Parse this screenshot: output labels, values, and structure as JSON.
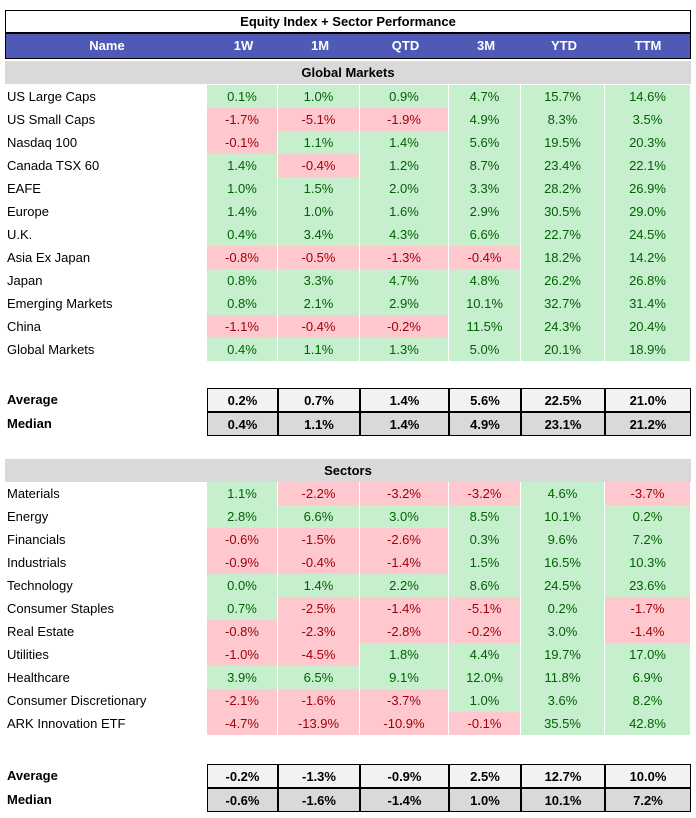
{
  "title": "Equity Index + Sector Performance",
  "columns": [
    "Name",
    "1W",
    "1M",
    "QTD",
    "3M",
    "YTD",
    "TTM"
  ],
  "global": {
    "heading": "Global Markets",
    "rows": [
      {
        "name": "US Large Caps",
        "values": [
          "0.1%",
          "1.0%",
          "0.9%",
          "4.7%",
          "15.7%",
          "14.6%"
        ]
      },
      {
        "name": "US Small Caps",
        "values": [
          "-1.7%",
          "-5.1%",
          "-1.9%",
          "4.9%",
          "8.3%",
          "3.5%"
        ]
      },
      {
        "name": "Nasdaq 100",
        "values": [
          "-0.1%",
          "1.1%",
          "1.4%",
          "5.6%",
          "19.5%",
          "20.3%"
        ]
      },
      {
        "name": "Canada TSX 60",
        "values": [
          "1.4%",
          "-0.4%",
          "1.2%",
          "8.7%",
          "23.4%",
          "22.1%"
        ]
      },
      {
        "name": "EAFE",
        "values": [
          "1.0%",
          "1.5%",
          "2.0%",
          "3.3%",
          "28.2%",
          "26.9%"
        ]
      },
      {
        "name": "Europe",
        "values": [
          "1.4%",
          "1.0%",
          "1.6%",
          "2.9%",
          "30.5%",
          "29.0%"
        ]
      },
      {
        "name": "U.K.",
        "values": [
          "0.4%",
          "3.4%",
          "4.3%",
          "6.6%",
          "22.7%",
          "24.5%"
        ]
      },
      {
        "name": "Asia Ex Japan",
        "values": [
          "-0.8%",
          "-0.5%",
          "-1.3%",
          "-0.4%",
          "18.2%",
          "14.2%"
        ]
      },
      {
        "name": "Japan",
        "values": [
          "0.8%",
          "3.3%",
          "4.7%",
          "4.8%",
          "26.2%",
          "26.8%"
        ]
      },
      {
        "name": "Emerging Markets",
        "values": [
          "0.8%",
          "2.1%",
          "2.9%",
          "10.1%",
          "32.7%",
          "31.4%"
        ]
      },
      {
        "name": "China",
        "values": [
          "-1.1%",
          "-0.4%",
          "-0.2%",
          "11.5%",
          "24.3%",
          "20.4%"
        ]
      },
      {
        "name": "Global Markets",
        "values": [
          "0.4%",
          "1.1%",
          "1.3%",
          "5.0%",
          "20.1%",
          "18.9%"
        ]
      }
    ],
    "summary": [
      {
        "name": "Average",
        "values": [
          "0.2%",
          "0.7%",
          "1.4%",
          "5.6%",
          "22.5%",
          "21.0%"
        ]
      },
      {
        "name": "Median",
        "values": [
          "0.4%",
          "1.1%",
          "1.4%",
          "4.9%",
          "23.1%",
          "21.2%"
        ]
      }
    ]
  },
  "sectors": {
    "heading": "Sectors",
    "rows": [
      {
        "name": "Materials",
        "values": [
          "1.1%",
          "-2.2%",
          "-3.2%",
          "-3.2%",
          "4.6%",
          "-3.7%"
        ]
      },
      {
        "name": "Energy",
        "values": [
          "2.8%",
          "6.6%",
          "3.0%",
          "8.5%",
          "10.1%",
          "0.2%"
        ]
      },
      {
        "name": "Financials",
        "values": [
          "-0.6%",
          "-1.5%",
          "-2.6%",
          "0.3%",
          "9.6%",
          "7.2%"
        ]
      },
      {
        "name": "Industrials",
        "values": [
          "-0.9%",
          "-0.4%",
          "-1.4%",
          "1.5%",
          "16.5%",
          "10.3%"
        ]
      },
      {
        "name": "Technology",
        "values": [
          "0.0%",
          "1.4%",
          "2.2%",
          "8.6%",
          "24.5%",
          "23.6%"
        ]
      },
      {
        "name": "Consumer Staples",
        "values": [
          "0.7%",
          "-2.5%",
          "-1.4%",
          "-5.1%",
          "0.2%",
          "-1.7%"
        ]
      },
      {
        "name": "Real Estate",
        "values": [
          "-0.8%",
          "-2.3%",
          "-2.8%",
          "-0.2%",
          "3.0%",
          "-1.4%"
        ]
      },
      {
        "name": "Utilities",
        "values": [
          "-1.0%",
          "-4.5%",
          "1.8%",
          "4.4%",
          "19.7%",
          "17.0%"
        ]
      },
      {
        "name": "Healthcare",
        "values": [
          "3.9%",
          "6.5%",
          "9.1%",
          "12.0%",
          "11.8%",
          "6.9%"
        ]
      },
      {
        "name": "Consumer Discretionary",
        "values": [
          "-2.1%",
          "-1.6%",
          "-3.7%",
          "1.0%",
          "3.6%",
          "8.2%"
        ]
      },
      {
        "name": "ARK Innovation ETF",
        "values": [
          "-4.7%",
          "-13.9%",
          "-10.9%",
          "-0.1%",
          "35.5%",
          "42.8%"
        ]
      }
    ],
    "summary": [
      {
        "name": "Average",
        "values": [
          "-0.2%",
          "-1.3%",
          "-0.9%",
          "2.5%",
          "12.7%",
          "10.0%"
        ]
      },
      {
        "name": "Median",
        "values": [
          "-0.6%",
          "-1.6%",
          "-1.4%",
          "1.0%",
          "10.1%",
          "7.2%"
        ]
      }
    ]
  },
  "colors": {
    "header_bg": "#4f59b6",
    "positive_bg": "#c6efce",
    "positive_fg": "#006100",
    "negative_bg": "#ffc7ce",
    "negative_fg": "#9c0006",
    "section_bg": "#d9d9d9"
  }
}
